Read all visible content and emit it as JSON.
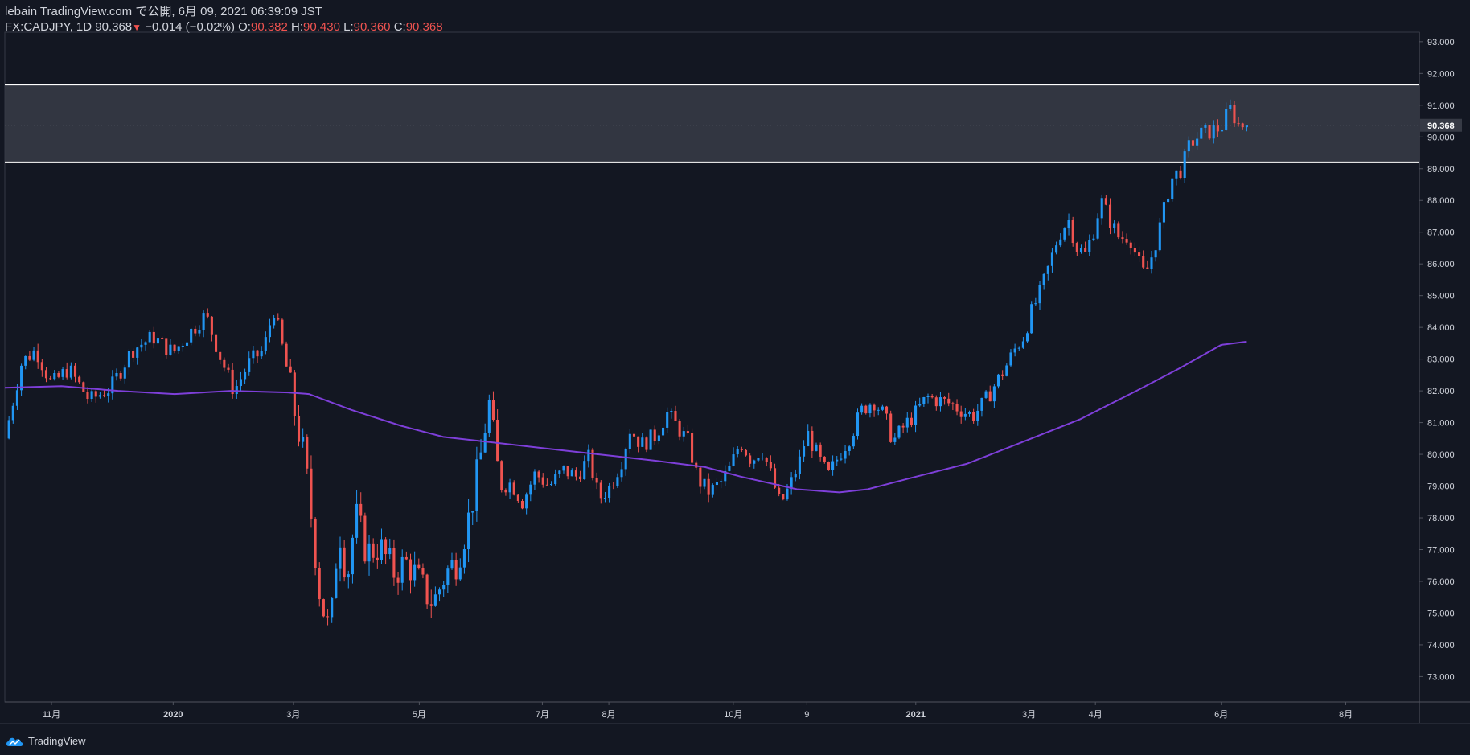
{
  "header": {
    "line1": "lebain TradingView.com で公開, 6月 09, 2021 06:39:09 JST",
    "symbol": "FX:CADJPY, 1D",
    "last": "90.368",
    "arrow": "▼",
    "change": "−0.014 (−0.02%)",
    "o_label": "O:",
    "o_val": "90.382",
    "h_label": "H:",
    "h_val": "90.430",
    "l_label": "L:",
    "l_val": "90.360",
    "c_label": "C:",
    "c_val": "90.368"
  },
  "brand": {
    "name": "TradingView",
    "icon": "tradingview-cloud-icon"
  },
  "colors": {
    "background": "#131722",
    "up": "#2196f3",
    "down": "#ef5350",
    "ma": "#7e3fd9",
    "zone_fill": "#363a45",
    "zone_line": "#ffffff",
    "axis_text": "#d1d4dc"
  },
  "chart_data": {
    "type": "candlestick",
    "symbol": "CADJPY",
    "interval": "1D",
    "ylim": [
      72.2,
      93.3
    ],
    "y_ticks": [
      "73.000",
      "74.000",
      "75.000",
      "76.000",
      "77.000",
      "78.000",
      "79.000",
      "80.000",
      "81.000",
      "82.000",
      "83.000",
      "84.000",
      "85.000",
      "86.000",
      "87.000",
      "88.000",
      "89.000",
      "90.000",
      "91.000",
      "92.000",
      "93.000"
    ],
    "last_price_label": "90.368",
    "last_price": 90.368,
    "x_ticks": [
      {
        "label": "11月",
        "t": 0.033
      },
      {
        "label": "2020",
        "t": 0.119
      },
      {
        "label": "3月",
        "t": 0.204
      },
      {
        "label": "5月",
        "t": 0.293
      },
      {
        "label": "7月",
        "t": 0.38
      },
      {
        "label": "8月",
        "t": 0.427
      },
      {
        "label": "10月",
        "t": 0.515
      },
      {
        "label": "9",
        "t": 0.567
      },
      {
        "label": "2021",
        "t": 0.644
      },
      {
        "label": "3月",
        "t": 0.724
      },
      {
        "label": "4月",
        "t": 0.771
      },
      {
        "label": "6月",
        "t": 0.86
      },
      {
        "label": "8月",
        "t": 0.948
      }
    ],
    "resistance_zone": {
      "top": 91.65,
      "bottom": 89.2
    },
    "price_path": [
      [
        0.0,
        80.5
      ],
      [
        0.012,
        82.9
      ],
      [
        0.022,
        83.3
      ],
      [
        0.033,
        82.2
      ],
      [
        0.045,
        82.7
      ],
      [
        0.06,
        81.7
      ],
      [
        0.075,
        82.1
      ],
      [
        0.09,
        83.3
      ],
      [
        0.105,
        83.7
      ],
      [
        0.119,
        83.2
      ],
      [
        0.13,
        83.8
      ],
      [
        0.142,
        84.4
      ],
      [
        0.152,
        83.1
      ],
      [
        0.162,
        82.0
      ],
      [
        0.173,
        82.9
      ],
      [
        0.183,
        83.3
      ],
      [
        0.19,
        84.6
      ],
      [
        0.198,
        83.0
      ],
      [
        0.205,
        81.3
      ],
      [
        0.212,
        79.8
      ],
      [
        0.218,
        77.5
      ],
      [
        0.223,
        75.5
      ],
      [
        0.23,
        74.3
      ],
      [
        0.236,
        77.8
      ],
      [
        0.242,
        76.1
      ],
      [
        0.248,
        78.1
      ],
      [
        0.256,
        76.9
      ],
      [
        0.265,
        77.1
      ],
      [
        0.275,
        76.3
      ],
      [
        0.285,
        76.6
      ],
      [
        0.295,
        75.8
      ],
      [
        0.303,
        75.3
      ],
      [
        0.311,
        76.2
      ],
      [
        0.32,
        76.7
      ],
      [
        0.328,
        78.0
      ],
      [
        0.336,
        79.8
      ],
      [
        0.342,
        81.7
      ],
      [
        0.35,
        79.0
      ],
      [
        0.358,
        79.1
      ],
      [
        0.366,
        78.5
      ],
      [
        0.375,
        79.4
      ],
      [
        0.385,
        79.0
      ],
      [
        0.395,
        79.5
      ],
      [
        0.404,
        79.3
      ],
      [
        0.413,
        79.9
      ],
      [
        0.42,
        78.6
      ],
      [
        0.428,
        79.0
      ],
      [
        0.436,
        79.8
      ],
      [
        0.442,
        80.8
      ],
      [
        0.45,
        80.3
      ],
      [
        0.46,
        80.6
      ],
      [
        0.468,
        81.3
      ],
      [
        0.475,
        80.9
      ],
      [
        0.483,
        80.4
      ],
      [
        0.49,
        79.2
      ],
      [
        0.498,
        78.8
      ],
      [
        0.506,
        79.1
      ],
      [
        0.513,
        79.6
      ],
      [
        0.52,
        80.4
      ],
      [
        0.528,
        79.8
      ],
      [
        0.535,
        80.2
      ],
      [
        0.542,
        79.3
      ],
      [
        0.548,
        78.4
      ],
      [
        0.555,
        79.0
      ],
      [
        0.562,
        79.8
      ],
      [
        0.567,
        80.7
      ],
      [
        0.575,
        79.9
      ],
      [
        0.582,
        79.3
      ],
      [
        0.59,
        80.0
      ],
      [
        0.598,
        80.6
      ],
      [
        0.606,
        81.4
      ],
      [
        0.614,
        81.7
      ],
      [
        0.622,
        81.2
      ],
      [
        0.628,
        80.4
      ],
      [
        0.636,
        80.9
      ],
      [
        0.644,
        81.3
      ],
      [
        0.652,
        81.8
      ],
      [
        0.66,
        81.7
      ],
      [
        0.668,
        81.6
      ],
      [
        0.676,
        81.4
      ],
      [
        0.684,
        81.2
      ],
      [
        0.692,
        81.6
      ],
      [
        0.7,
        82.2
      ],
      [
        0.707,
        82.7
      ],
      [
        0.714,
        83.3
      ],
      [
        0.72,
        83.7
      ],
      [
        0.726,
        84.5
      ],
      [
        0.732,
        85.1
      ],
      [
        0.738,
        85.9
      ],
      [
        0.745,
        86.9
      ],
      [
        0.752,
        87.4
      ],
      [
        0.758,
        86.5
      ],
      [
        0.764,
        86.3
      ],
      [
        0.77,
        87.1
      ],
      [
        0.775,
        88.0
      ],
      [
        0.782,
        87.3
      ],
      [
        0.788,
        86.8
      ],
      [
        0.795,
        86.9
      ],
      [
        0.801,
        86.1
      ],
      [
        0.806,
        85.6
      ],
      [
        0.812,
        86.4
      ],
      [
        0.818,
        87.4
      ],
      [
        0.824,
        88.6
      ],
      [
        0.832,
        89.0
      ],
      [
        0.838,
        89.8
      ],
      [
        0.846,
        90.1
      ],
      [
        0.854,
        90.2
      ],
      [
        0.86,
        90.3
      ],
      [
        0.866,
        90.9
      ],
      [
        0.872,
        90.4
      ],
      [
        0.878,
        90.368
      ]
    ],
    "moving_average": {
      "name": "MA",
      "points": [
        [
          0.0,
          82.1
        ],
        [
          0.04,
          82.15
        ],
        [
          0.08,
          82.0
        ],
        [
          0.12,
          81.9
        ],
        [
          0.16,
          82.0
        ],
        [
          0.2,
          81.95
        ],
        [
          0.215,
          81.9
        ],
        [
          0.245,
          81.4
        ],
        [
          0.28,
          80.9
        ],
        [
          0.31,
          80.55
        ],
        [
          0.34,
          80.4
        ],
        [
          0.38,
          80.2
        ],
        [
          0.42,
          80.0
        ],
        [
          0.46,
          79.8
        ],
        [
          0.495,
          79.6
        ],
        [
          0.52,
          79.3
        ],
        [
          0.56,
          78.9
        ],
        [
          0.59,
          78.8
        ],
        [
          0.61,
          78.9
        ],
        [
          0.64,
          79.25
        ],
        [
          0.68,
          79.7
        ],
        [
          0.72,
          80.4
        ],
        [
          0.76,
          81.1
        ],
        [
          0.8,
          82.0
        ],
        [
          0.83,
          82.7
        ],
        [
          0.86,
          83.45
        ],
        [
          0.878,
          83.55
        ]
      ]
    }
  }
}
